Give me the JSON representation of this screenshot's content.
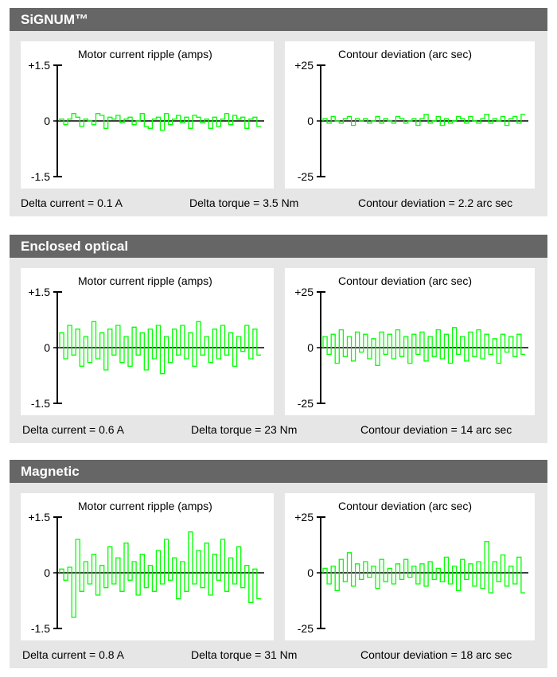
{
  "colors": {
    "header": "#666666",
    "body": "#e6e6e6",
    "trace": "#00ff00"
  },
  "chart_data": [
    {
      "section": "SiGNUM™",
      "type": "line",
      "step": true,
      "charts": [
        {
          "title": "Motor current ripple (amps)",
          "yticks": [
            "+1.5",
            "0",
            "-1.5"
          ],
          "ylim": [
            -1.5,
            1.5
          ],
          "values": [
            0.05,
            -0.1,
            0.05,
            0.2,
            0.1,
            -0.15,
            0.05,
            0,
            -0.1,
            0.2,
            0.15,
            -0.2,
            0.1,
            0.05,
            0.15,
            -0.05,
            0.05,
            0.1,
            -0.1,
            0,
            0.2,
            -0.15,
            -0.2,
            0.05,
            0.1,
            -0.25,
            0.2,
            -0.1,
            0.05,
            0.15,
            -0.05,
            0.1,
            -0.2,
            0.15,
            0.1,
            -0.05,
            0.05,
            -0.2,
            0.1,
            -0.15,
            0.05,
            0.2,
            -0.1,
            0.15,
            0.05,
            0.1,
            -0.2,
            0.05,
            0.1,
            -0.15
          ]
        },
        {
          "title": "Contour deviation (arc sec)",
          "yticks": [
            "+25",
            "0",
            "-25"
          ],
          "ylim": [
            -25,
            25
          ],
          "values": [
            1,
            -1,
            2,
            0,
            -1,
            1,
            2,
            -2,
            1,
            0,
            1,
            -1,
            0,
            2,
            -1,
            1,
            0,
            -1,
            2,
            1,
            -1,
            0,
            1,
            -2,
            1,
            3,
            -1,
            0,
            2,
            -2,
            1,
            -1,
            0,
            2,
            1,
            -1,
            2,
            0,
            -1,
            1,
            3,
            -1,
            1,
            0,
            2,
            -2,
            1,
            2,
            -1,
            3
          ]
        }
      ],
      "footer": [
        "Delta current = 0.1 A",
        "Delta torque = 3.5 Nm",
        "Contour deviation = 2.2 arc sec"
      ]
    },
    {
      "section": "Enclosed optical",
      "type": "line",
      "step": true,
      "charts": [
        {
          "title": "Motor current ripple (amps)",
          "yticks": [
            "+1.5",
            "0",
            "-1.5"
          ],
          "ylim": [
            -1.5,
            1.5
          ],
          "values": [
            0.4,
            -0.3,
            0.6,
            -0.2,
            0.5,
            -0.5,
            0.3,
            -0.4,
            0.7,
            -0.3,
            0.4,
            -0.6,
            0.5,
            -0.2,
            0.6,
            -0.4,
            0.3,
            -0.5,
            0.55,
            -0.2,
            0.4,
            -0.6,
            0.5,
            -0.3,
            0.6,
            -0.7,
            0.3,
            -0.4,
            0.5,
            -0.2,
            0.6,
            -0.3,
            0.4,
            -0.5,
            0.7,
            -0.2,
            0.3,
            -0.4,
            0.5,
            -0.3,
            0.6,
            -0.2,
            0.4,
            -0.5,
            0.3,
            -0.1,
            0.6,
            -0.3,
            0.5,
            -0.2
          ]
        },
        {
          "title": "Contour deviation (arc sec)",
          "yticks": [
            "+25",
            "0",
            "-25"
          ],
          "ylim": [
            -25,
            25
          ],
          "values": [
            5,
            -3,
            6,
            -7,
            8,
            -4,
            5,
            -6,
            7,
            -2,
            6,
            -5,
            4,
            -8,
            7,
            -3,
            6,
            -5,
            8,
            -4,
            5,
            -7,
            6,
            -3,
            7,
            -6,
            5,
            -4,
            8,
            -5,
            6,
            -7,
            9,
            -3,
            5,
            -6,
            7,
            -4,
            8,
            -5,
            6,
            -3,
            4,
            -7,
            6,
            -2,
            5,
            -4,
            6,
            -3
          ]
        }
      ],
      "footer": [
        "Delta current = 0.6 A",
        "Delta torque = 23 Nm",
        "Contour deviation = 14 arc sec"
      ]
    },
    {
      "section": "Magnetic",
      "type": "line",
      "step": true,
      "charts": [
        {
          "title": "Motor current ripple (amps)",
          "yticks": [
            "+1.5",
            "0",
            "-1.5"
          ],
          "ylim": [
            -1.5,
            1.5
          ],
          "values": [
            0.1,
            -0.2,
            0.15,
            -1.2,
            0.9,
            -0.5,
            0.3,
            -0.3,
            0.5,
            -0.6,
            0.2,
            -0.4,
            0.7,
            -0.3,
            0.4,
            -0.5,
            0.8,
            -0.2,
            0.3,
            -0.6,
            0.5,
            -0.4,
            0.2,
            -0.5,
            0.6,
            -0.3,
            0.9,
            -0.2,
            0.4,
            -0.7,
            0.3,
            -0.5,
            1.1,
            -0.3,
            0.6,
            -0.4,
            0.8,
            -0.6,
            0.5,
            -0.2,
            0.9,
            -0.5,
            0.4,
            -0.3,
            0.7,
            -0.4,
            0.2,
            -0.8,
            0.1,
            -0.7
          ]
        },
        {
          "title": "Contour deviation (arc sec)",
          "yticks": [
            "+25",
            "0",
            "-25"
          ],
          "ylim": [
            -25,
            25
          ],
          "values": [
            2,
            -5,
            3,
            -8,
            6,
            -4,
            9,
            -6,
            4,
            -3,
            5,
            -2,
            3,
            -7,
            6,
            -4,
            2,
            -5,
            4,
            -3,
            6,
            -2,
            3,
            -5,
            4,
            -6,
            5,
            -3,
            2,
            -4,
            7,
            -5,
            3,
            -8,
            6,
            -3,
            4,
            -6,
            5,
            -7,
            14,
            -9,
            5,
            -4,
            8,
            -6,
            3,
            -5,
            7,
            -9
          ]
        }
      ],
      "footer": [
        "Delta current = 0.8 A",
        "Delta torque = 31 Nm",
        "Contour deviation = 18 arc sec"
      ]
    }
  ]
}
